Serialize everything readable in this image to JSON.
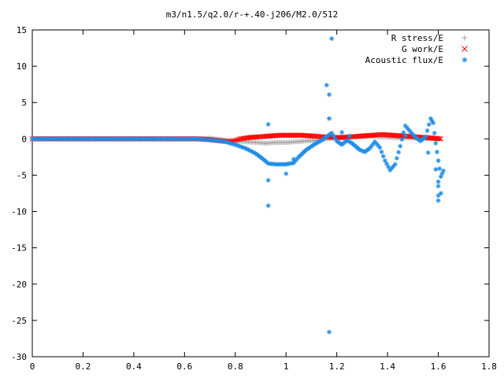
{
  "chart_data": {
    "type": "scatter",
    "title": "m3/n1.5/q2.0/r-+.40-j206/M2.0/512",
    "xlabel": "",
    "ylabel": "",
    "xlim": [
      0,
      1.8
    ],
    "ylim": [
      -30,
      15
    ],
    "xticks": [
      0,
      0.2,
      0.4,
      0.6,
      0.8,
      1,
      1.2,
      1.4,
      1.6,
      1.8
    ],
    "xtick_labels": [
      "0",
      "0.2",
      "0.4",
      "0.6",
      "0.8",
      "1",
      "1.2",
      "1.4",
      "1.6",
      "1.8"
    ],
    "yticks": [
      15,
      10,
      5,
      0,
      -5,
      -10,
      -15,
      -20,
      -25,
      -30
    ],
    "ytick_labels": [
      "15",
      "10",
      "5",
      "0",
      "-5",
      "-10",
      "-15",
      "-20",
      "-25",
      "-30"
    ],
    "grid": false,
    "legend_position": "top-right",
    "series": [
      {
        "name": "R stress/E",
        "marker": "+",
        "color": "#a0a0a0",
        "points": [
          [
            0.0,
            0
          ],
          [
            0.1,
            0
          ],
          [
            0.2,
            0
          ],
          [
            0.3,
            0
          ],
          [
            0.4,
            0
          ],
          [
            0.5,
            0
          ],
          [
            0.6,
            0
          ],
          [
            0.65,
            0
          ],
          [
            0.7,
            0.1
          ],
          [
            0.75,
            -0.1
          ],
          [
            0.8,
            -0.3
          ],
          [
            0.84,
            -0.4
          ],
          [
            0.88,
            -0.5
          ],
          [
            0.92,
            -0.6
          ],
          [
            0.96,
            -0.5
          ],
          [
            1.0,
            -0.5
          ],
          [
            1.04,
            -0.4
          ],
          [
            1.08,
            -0.3
          ],
          [
            1.12,
            -0.2
          ],
          [
            1.16,
            0.0
          ],
          [
            1.2,
            0.1
          ],
          [
            1.25,
            0.2
          ],
          [
            1.3,
            0.3
          ],
          [
            1.35,
            0.3
          ],
          [
            1.4,
            0.2
          ],
          [
            1.45,
            0.1
          ],
          [
            1.5,
            0.1
          ],
          [
            1.55,
            0.0
          ],
          [
            1.6,
            0.0
          ]
        ]
      },
      {
        "name": "G work/E",
        "marker": "x",
        "color": "#ff0000",
        "points": [
          [
            0.0,
            0
          ],
          [
            0.1,
            0
          ],
          [
            0.2,
            0
          ],
          [
            0.3,
            0
          ],
          [
            0.4,
            0
          ],
          [
            0.5,
            0
          ],
          [
            0.6,
            0
          ],
          [
            0.65,
            0
          ],
          [
            0.7,
            -0.1
          ],
          [
            0.75,
            -0.3
          ],
          [
            0.78,
            -0.4
          ],
          [
            0.8,
            -0.2
          ],
          [
            0.82,
            0.0
          ],
          [
            0.86,
            0.2
          ],
          [
            0.9,
            0.3
          ],
          [
            0.94,
            0.4
          ],
          [
            0.98,
            0.5
          ],
          [
            1.02,
            0.5
          ],
          [
            1.06,
            0.5
          ],
          [
            1.1,
            0.4
          ],
          [
            1.14,
            0.3
          ],
          [
            1.18,
            0.2
          ],
          [
            1.22,
            0.2
          ],
          [
            1.26,
            0.3
          ],
          [
            1.3,
            0.4
          ],
          [
            1.34,
            0.5
          ],
          [
            1.38,
            0.6
          ],
          [
            1.42,
            0.5
          ],
          [
            1.46,
            0.4
          ],
          [
            1.5,
            0.3
          ],
          [
            1.54,
            0.2
          ],
          [
            1.58,
            0.1
          ],
          [
            1.61,
            0.0
          ]
        ]
      },
      {
        "name": "Acoustic flux/E",
        "marker": "*",
        "color": "#1e8ce6",
        "points": [
          [
            0.0,
            0
          ],
          [
            0.1,
            0
          ],
          [
            0.2,
            0
          ],
          [
            0.3,
            0
          ],
          [
            0.4,
            0
          ],
          [
            0.5,
            0
          ],
          [
            0.6,
            0
          ],
          [
            0.65,
            0
          ],
          [
            0.68,
            -0.1
          ],
          [
            0.72,
            -0.2
          ],
          [
            0.76,
            -0.4
          ],
          [
            0.8,
            -0.8
          ],
          [
            0.84,
            -1.3
          ],
          [
            0.88,
            -2.0
          ],
          [
            0.91,
            -2.8
          ],
          [
            0.93,
            -3.4
          ],
          [
            0.96,
            -3.5
          ],
          [
            1.0,
            -3.5
          ],
          [
            1.03,
            -3.3
          ],
          [
            1.05,
            -2.5
          ],
          [
            1.08,
            -1.5
          ],
          [
            1.11,
            -0.8
          ],
          [
            1.14,
            -0.2
          ],
          [
            1.16,
            0.3
          ],
          [
            1.18,
            0.8
          ],
          [
            1.2,
            -0.3
          ],
          [
            1.22,
            -0.8
          ],
          [
            1.24,
            -0.2
          ],
          [
            1.26,
            -0.6
          ],
          [
            1.29,
            -1.5
          ],
          [
            1.31,
            -1.8
          ],
          [
            1.33,
            -1.3
          ],
          [
            1.35,
            -0.4
          ],
          [
            1.37,
            -1.2
          ],
          [
            1.39,
            -3.0
          ],
          [
            1.41,
            -4.3
          ],
          [
            1.43,
            -3.5
          ],
          [
            1.45,
            -1.0
          ],
          [
            1.47,
            1.8
          ],
          [
            1.49,
            1.0
          ],
          [
            1.51,
            0.2
          ],
          [
            1.53,
            -0.3
          ],
          [
            1.55,
            0.3
          ],
          [
            1.57,
            2.8
          ],
          [
            1.58,
            2.2
          ],
          [
            1.59,
            -0.6
          ],
          [
            1.6,
            -3.0
          ],
          [
            1.61,
            -5.2
          ],
          [
            1.62,
            -4.4
          ],
          [
            0.93,
            2.0
          ],
          [
            0.93,
            -5.7
          ],
          [
            0.93,
            -9.2
          ],
          [
            1.0,
            -4.8
          ],
          [
            1.03,
            -2.8
          ],
          [
            1.16,
            7.4
          ],
          [
            1.17,
            6.1
          ],
          [
            1.17,
            2.8
          ],
          [
            1.18,
            13.8
          ],
          [
            1.17,
            -26.6
          ],
          [
            1.22,
            0.9
          ],
          [
            1.25,
            0.4
          ],
          [
            1.47,
            0.4
          ],
          [
            1.56,
            -1.9
          ],
          [
            1.59,
            -4.2
          ],
          [
            1.6,
            -5.9
          ],
          [
            1.61,
            -7.5
          ],
          [
            1.6,
            -7.8
          ],
          [
            1.6,
            -8.5
          ],
          [
            1.6,
            -6.5
          ]
        ]
      }
    ]
  }
}
